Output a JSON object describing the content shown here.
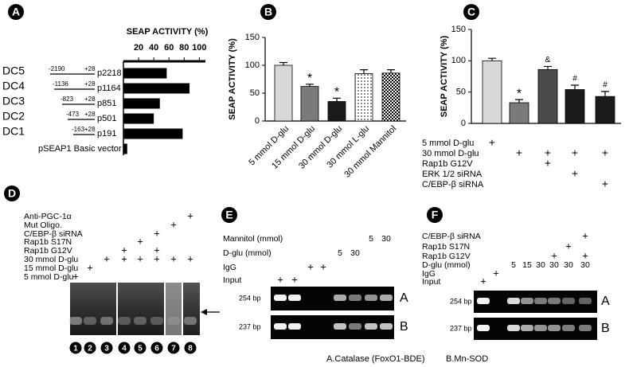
{
  "panel_labels": [
    "A",
    "B",
    "C",
    "D",
    "E",
    "F"
  ],
  "chart_data": [
    {
      "type": "hbar",
      "title": "SEAP ACTIVITY (%)",
      "categories": [
        "p2218",
        "p1164",
        "p851",
        "p501",
        "p191",
        "pSEAP1 Basic vector"
      ],
      "values": [
        57,
        87,
        48,
        40,
        78,
        5
      ],
      "color": "#000000",
      "xlim": [
        0,
        108
      ],
      "xticks": [
        20,
        40,
        60,
        80,
        100
      ],
      "constructs": [
        {
          "name": "DC5",
          "start": "-2190",
          "end": "+28"
        },
        {
          "name": "DC4",
          "start": "-1136",
          "end": "+28"
        },
        {
          "name": "DC3",
          "start": "-823",
          "end": "+28"
        },
        {
          "name": "DC2",
          "start": "-473",
          "end": "+28"
        },
        {
          "name": "DC1",
          "start": "-163",
          "end": "+28"
        }
      ]
    },
    {
      "type": "bar",
      "ylabel": "SEAP ACTIVITY (%)",
      "categories": [
        "5 mmol D-glu",
        "15 mmol D-glu",
        "30 mmol D-glu",
        "30 mmol L-glu",
        "30 mmol Mannitol"
      ],
      "values": [
        100,
        62,
        35,
        85,
        86
      ],
      "errors": [
        5,
        4,
        6,
        7,
        6
      ],
      "colors": [
        "#d8d8d8",
        "#7a7a7a",
        "#1a1a1a",
        "pattern-dots",
        "pattern-checker"
      ],
      "ylim": [
        0,
        150
      ],
      "yticks": [
        0,
        50,
        100,
        150
      ],
      "annotations": [
        {
          "index": 1,
          "text": "*"
        },
        {
          "index": 2,
          "text": "*"
        }
      ]
    },
    {
      "type": "bar",
      "ylabel": "SEAP ACTIVITY (%)",
      "values": [
        100,
        33,
        86,
        54,
        43
      ],
      "errors": [
        4,
        5,
        5,
        7,
        8
      ],
      "colors": [
        "#d8d8d8",
        "#7a7a7a",
        "#4a4a4a",
        "#1a1a1a",
        "#1a1a1a"
      ],
      "ylim": [
        0,
        150
      ],
      "yticks": [
        0,
        50,
        100,
        150
      ],
      "annotations": [
        {
          "index": 1,
          "text": "*"
        },
        {
          "index": 2,
          "text": "&"
        },
        {
          "index": 3,
          "text": "#"
        },
        {
          "index": 4,
          "text": "#"
        }
      ],
      "conditions": [
        {
          "label": "5 mmol D-glu",
          "cells": [
            "+",
            null,
            null,
            null,
            null
          ]
        },
        {
          "label": "30 mmol D-glu",
          "cells": [
            null,
            "+",
            "+",
            "+",
            "+"
          ]
        },
        {
          "label": "Rap1b G12V",
          "cells": [
            null,
            null,
            "+",
            null,
            null
          ]
        },
        {
          "label": "ERK 1/2 siRNA",
          "cells": [
            null,
            null,
            null,
            "+",
            null
          ]
        },
        {
          "label": "C/EBP-β siRNA",
          "cells": [
            null,
            null,
            null,
            null,
            "+"
          ]
        }
      ]
    }
  ],
  "gels": {
    "D": {
      "rows": [
        {
          "label": "Anti-PGC-1α",
          "cells": [
            null,
            null,
            null,
            null,
            null,
            null,
            null,
            "+"
          ]
        },
        {
          "label": "Mut Oligo.",
          "cells": [
            null,
            null,
            null,
            null,
            null,
            null,
            "+",
            null
          ]
        },
        {
          "label": "C/EBP-β siRNA",
          "cells": [
            null,
            null,
            null,
            null,
            null,
            "+",
            null,
            null
          ]
        },
        {
          "label": "Rap1b S17N",
          "cells": [
            null,
            null,
            null,
            null,
            "+",
            null,
            null,
            null
          ]
        },
        {
          "label": "Rap1b G12V",
          "cells": [
            null,
            null,
            null,
            "+",
            null,
            "+",
            null,
            null
          ]
        },
        {
          "label": "30 mmol D-glu",
          "cells": [
            null,
            null,
            "+",
            "+",
            "+",
            "+",
            "+",
            "+"
          ]
        },
        {
          "label": "15 mmol D-glu",
          "cells": [
            null,
            "+",
            null,
            null,
            null,
            null,
            null,
            null
          ]
        },
        {
          "label": "5 mmol D-glu",
          "cells": [
            "+",
            null,
            null,
            null,
            null,
            null,
            null,
            null
          ]
        }
      ],
      "lanes": [
        "1",
        "2",
        "3",
        "4",
        "5",
        "6",
        "7",
        "8"
      ]
    },
    "E": {
      "rows": [
        {
          "label": "Mannitol (mmol)",
          "cells": [
            null,
            null,
            null,
            null,
            null,
            null,
            "5",
            "30"
          ]
        },
        {
          "label": "D-glu (mmol)",
          "cells": [
            null,
            null,
            null,
            null,
            "5",
            "30",
            null,
            null
          ]
        },
        {
          "label": "IgG",
          "cells": [
            null,
            null,
            "+",
            "+",
            null,
            null,
            null,
            null
          ]
        },
        {
          "label": "Input",
          "cells": [
            "+",
            "+",
            null,
            null,
            null,
            null,
            null,
            null
          ]
        }
      ],
      "bands": [
        {
          "size": "254 bp",
          "name": "A"
        },
        {
          "size": "237 bp",
          "name": "B"
        }
      ],
      "caption": "A.Catalase (FoxO1-BDE)"
    },
    "F": {
      "rows": [
        {
          "label": "C/EBP-β siRNA",
          "cells": [
            null,
            null,
            null,
            null,
            null,
            null,
            null,
            "+"
          ]
        },
        {
          "label": "Rap1b S17N",
          "cells": [
            null,
            null,
            null,
            null,
            null,
            null,
            "+",
            null
          ]
        },
        {
          "label": "Rap1b G12V",
          "cells": [
            null,
            null,
            null,
            null,
            null,
            "+",
            null,
            "+"
          ]
        },
        {
          "label": "D-glu (mmol)",
          "cells": [
            null,
            null,
            "5",
            "15",
            "30",
            "30",
            "30",
            "30"
          ]
        },
        {
          "label": "IgG",
          "cells": [
            null,
            "+",
            null,
            null,
            null,
            null,
            null,
            null
          ]
        },
        {
          "label": "Input",
          "cells": [
            "+",
            null,
            null,
            null,
            null,
            null,
            null,
            null
          ]
        }
      ],
      "bands": [
        {
          "size": "254 bp",
          "name": "A"
        },
        {
          "size": "237 bp",
          "name": "B"
        }
      ],
      "caption": "B.Mn-SOD"
    }
  }
}
